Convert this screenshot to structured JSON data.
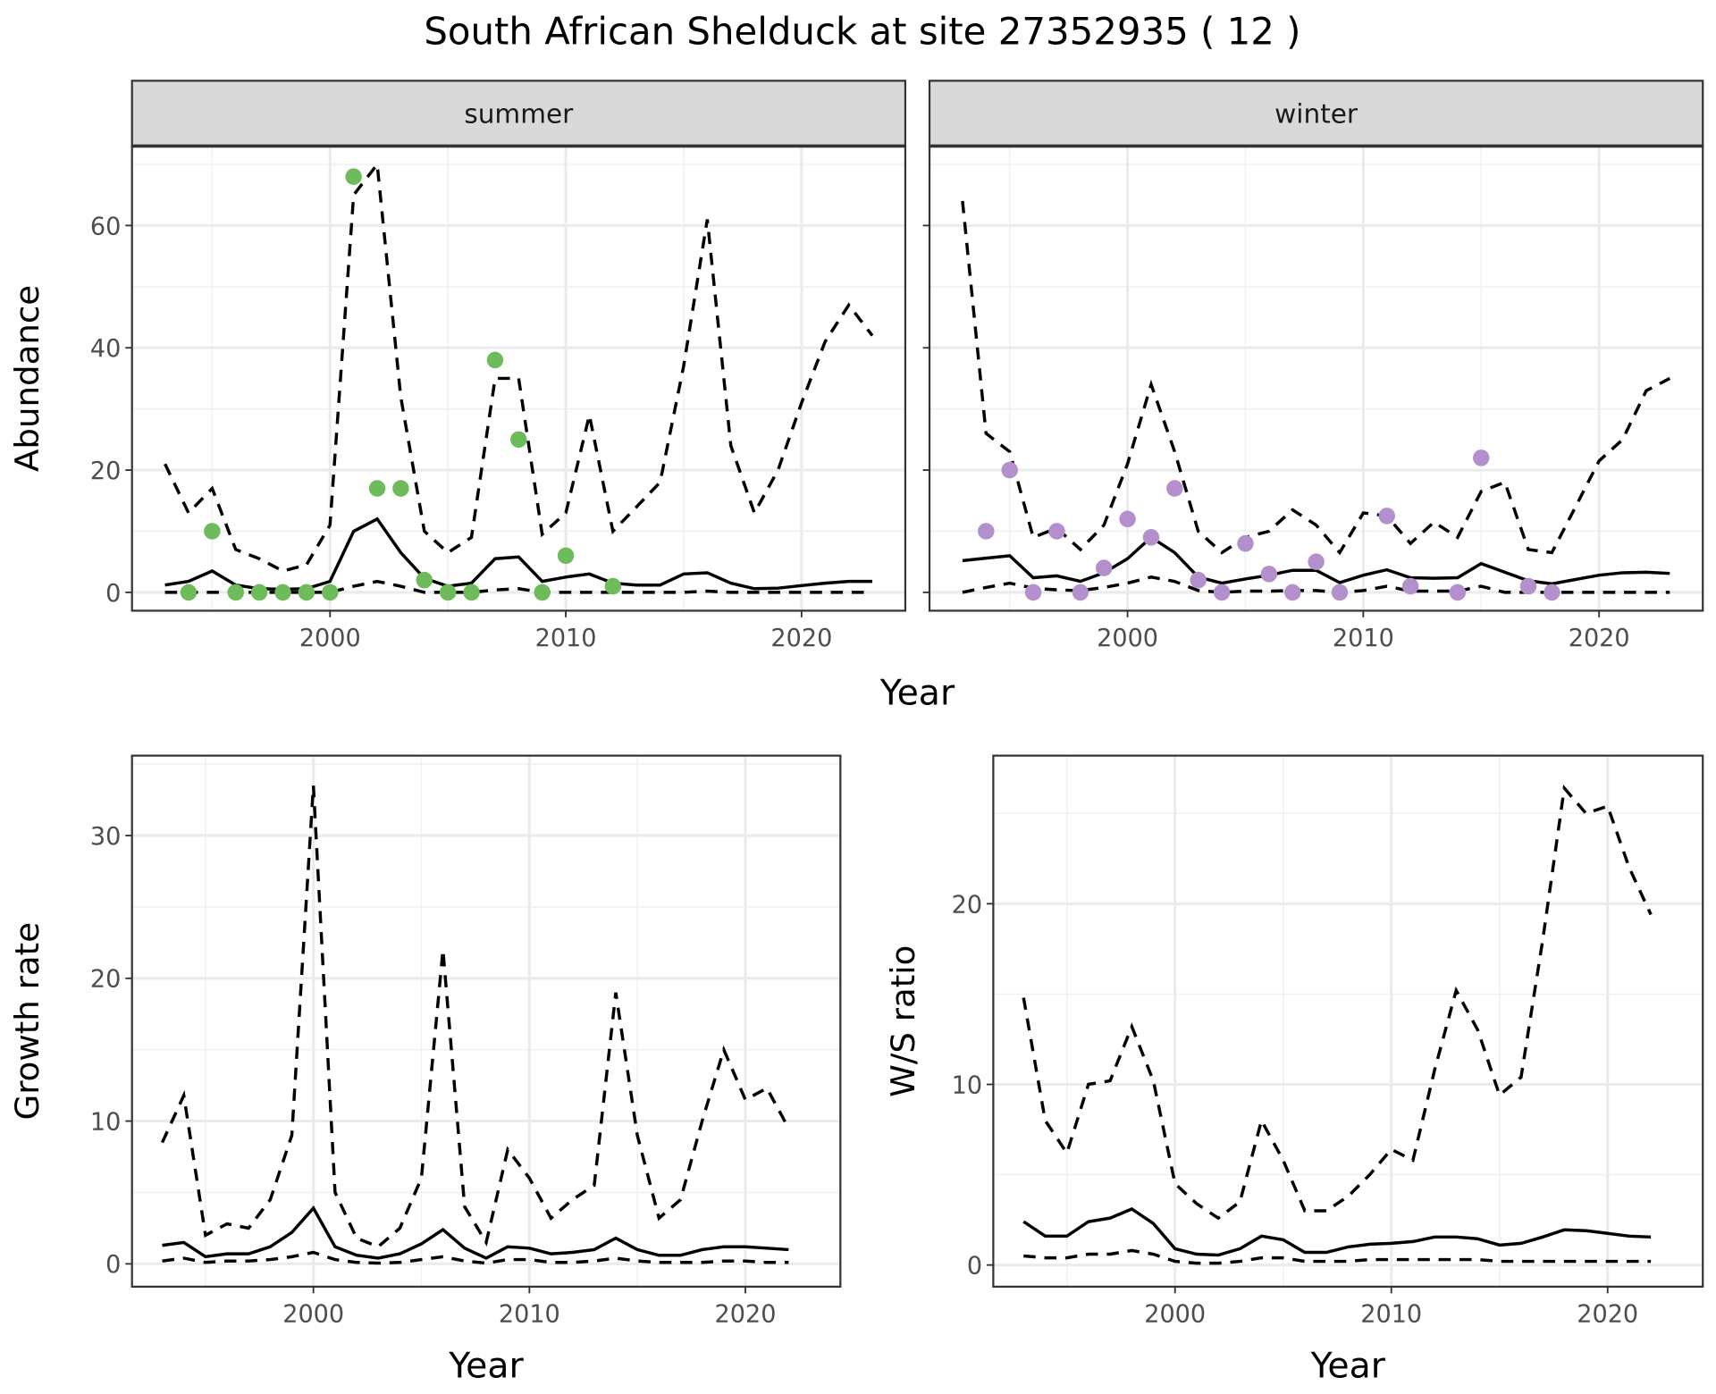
{
  "title": "South African Shelduck at site 27352935 ( 12 )",
  "colors": {
    "summer_points": "#6dbb5a",
    "winter_points": "#b38fcb",
    "lines": "#000000",
    "strip": "#d9d9d9"
  },
  "chart_data": [
    {
      "type": "line",
      "facet": "summer",
      "xlabel": "Year",
      "ylabel": "Abundance",
      "xlim": [
        1991.6,
        2024.4
      ],
      "ylim": [
        -3,
        73
      ],
      "xticks": [
        2000,
        2010,
        2020
      ],
      "yticks": [
        0,
        20,
        40,
        60
      ],
      "grid": true,
      "x": [
        1993,
        1994,
        1995,
        1996,
        1997,
        1998,
        1999,
        2000,
        2001,
        2002,
        2003,
        2004,
        2005,
        2006,
        2007,
        2008,
        2009,
        2010,
        2011,
        2012,
        2013,
        2014,
        2015,
        2016,
        2017,
        2018,
        2019,
        2020,
        2021,
        2022,
        2023
      ],
      "mean": [
        1.2,
        1.8,
        3.5,
        1.2,
        0.6,
        0.5,
        0.6,
        1.8,
        10,
        12,
        6.5,
        2.3,
        1.0,
        1.5,
        5.5,
        5.8,
        1.8,
        2.5,
        3,
        1.5,
        1.2,
        1.2,
        3,
        3.2,
        1.5,
        0.6,
        0.7,
        1.1,
        1.5,
        1.8,
        1.8
      ],
      "upper": [
        21,
        13,
        17,
        7,
        5.5,
        3.5,
        4.5,
        11,
        65,
        70,
        32,
        10,
        6.5,
        9,
        35,
        35,
        9.5,
        13,
        29,
        10,
        14,
        18,
        37,
        61,
        24,
        13,
        20,
        31,
        41,
        47,
        42
      ],
      "lower": [
        0,
        0,
        0,
        0,
        0,
        0,
        0,
        0,
        1,
        1.8,
        1,
        0,
        0,
        0,
        0.4,
        0.6,
        0,
        0,
        0,
        0,
        0,
        0,
        0,
        0.2,
        0,
        0,
        0,
        0,
        0,
        0,
        0
      ],
      "points": {
        "x": [
          1994,
          1995,
          1996,
          1997,
          1998,
          1999,
          2000,
          2001,
          2002,
          2003,
          2004,
          2005,
          2006,
          2007,
          2008,
          2009,
          2010,
          2012
        ],
        "y": [
          0,
          10,
          0,
          0,
          0,
          0,
          0,
          68,
          17,
          17,
          2,
          0,
          0,
          38,
          25,
          0,
          6,
          1
        ]
      }
    },
    {
      "type": "line",
      "facet": "winter",
      "xlabel": "Year",
      "ylabel": "Abundance",
      "xlim": [
        1991.6,
        2024.4
      ],
      "ylim": [
        -3,
        73
      ],
      "xticks": [
        2000,
        2010,
        2020
      ],
      "yticks": [
        0,
        20,
        40,
        60
      ],
      "grid": true,
      "x": [
        1993,
        1994,
        1995,
        1996,
        1997,
        1998,
        1999,
        2000,
        2001,
        2002,
        2003,
        2004,
        2005,
        2006,
        2007,
        2008,
        2009,
        2010,
        2011,
        2012,
        2013,
        2014,
        2015,
        2016,
        2017,
        2018,
        2019,
        2020,
        2021,
        2022,
        2023
      ],
      "mean": [
        5.2,
        5.6,
        6,
        2.4,
        2.7,
        1.8,
        3.2,
        5.5,
        9,
        6.5,
        2.5,
        1.5,
        2.2,
        2.8,
        3.6,
        3.6,
        1.6,
        2.8,
        3.7,
        2.4,
        2.3,
        2.4,
        4.7,
        3.3,
        1.9,
        1.4,
        2.1,
        2.8,
        3.2,
        3.3,
        3.1
      ],
      "upper": [
        64,
        26,
        23,
        9,
        10.5,
        7,
        11,
        21,
        34,
        23,
        10,
        6.5,
        9,
        10,
        13.5,
        11,
        6.5,
        13,
        12.5,
        8,
        11.5,
        9,
        16.5,
        18,
        7,
        6.5,
        14,
        21.5,
        25,
        33,
        35
      ],
      "lower": [
        0,
        0.8,
        1.5,
        0.7,
        0.4,
        0.3,
        0.8,
        1.5,
        2.5,
        1.8,
        0.3,
        0,
        0.2,
        0.2,
        0.3,
        0.3,
        0,
        0.3,
        1,
        0.2,
        0.2,
        0.2,
        1,
        0,
        0,
        0,
        0,
        0,
        0,
        0,
        0
      ],
      "points": {
        "x": [
          1994,
          1995,
          1996,
          1997,
          1998,
          1999,
          2000,
          2001,
          2002,
          2003,
          2004,
          2005,
          2006,
          2007,
          2008,
          2009,
          2011,
          2012,
          2014,
          2015,
          2017,
          2018
        ],
        "y": [
          10,
          20,
          0,
          10,
          0,
          4,
          12,
          9,
          17,
          2,
          0,
          8,
          3,
          0,
          5,
          0,
          12.5,
          1,
          0,
          22,
          1,
          0
        ]
      }
    },
    {
      "type": "line",
      "xlabel": "Year",
      "ylabel": "Growth rate",
      "xlim": [
        1991.6,
        2024.4
      ],
      "ylim": [
        -1.6,
        35.6
      ],
      "xticks": [
        2000,
        2010,
        2020
      ],
      "yticks": [
        0,
        10,
        20,
        30
      ],
      "grid": true,
      "x": [
        1993,
        1994,
        1995,
        1996,
        1997,
        1998,
        1999,
        2000,
        2001,
        2002,
        2003,
        2004,
        2005,
        2006,
        2007,
        2008,
        2009,
        2010,
        2011,
        2012,
        2013,
        2014,
        2015,
        2016,
        2017,
        2018,
        2019,
        2020,
        2021,
        2022
      ],
      "mean": [
        1.3,
        1.5,
        0.5,
        0.7,
        0.7,
        1.2,
        2.2,
        3.9,
        1.2,
        0.6,
        0.4,
        0.7,
        1.4,
        2.4,
        1.1,
        0.4,
        1.2,
        1.1,
        0.7,
        0.8,
        1.0,
        1.8,
        1.0,
        0.6,
        0.6,
        1.0,
        1.2,
        1.2,
        1.1,
        1.0
      ],
      "upper": [
        8.5,
        11.8,
        2,
        2.8,
        2.5,
        4.5,
        9,
        33.5,
        5,
        1.8,
        1.2,
        2.5,
        6,
        22,
        4,
        1.5,
        8,
        6,
        3.2,
        4.5,
        5.5,
        19,
        9,
        3.2,
        4.5,
        10,
        15,
        11.5,
        12.3,
        9.5
      ],
      "lower": [
        0.2,
        0.4,
        0.1,
        0.2,
        0.2,
        0.3,
        0.5,
        0.8,
        0.3,
        0.1,
        0.05,
        0.1,
        0.3,
        0.5,
        0.2,
        0.05,
        0.3,
        0.3,
        0.1,
        0.1,
        0.2,
        0.4,
        0.2,
        0.1,
        0.1,
        0.1,
        0.2,
        0.2,
        0.1,
        0.1
      ]
    },
    {
      "type": "line",
      "xlabel": "Year",
      "ylabel": "W/S ratio",
      "xlim": [
        1991.6,
        2024.4
      ],
      "ylim": [
        -1.2,
        28.2
      ],
      "xticks": [
        2000,
        2010,
        2020
      ],
      "yticks": [
        0,
        10,
        20
      ],
      "grid": true,
      "x": [
        1993,
        1994,
        1995,
        1996,
        1997,
        1998,
        1999,
        2000,
        2001,
        2002,
        2003,
        2004,
        2005,
        2006,
        2007,
        2008,
        2009,
        2010,
        2011,
        2012,
        2013,
        2014,
        2015,
        2016,
        2017,
        2018,
        2019,
        2020,
        2021,
        2022
      ],
      "mean": [
        2.4,
        1.6,
        1.6,
        2.4,
        2.6,
        3.1,
        2.3,
        0.9,
        0.6,
        0.55,
        0.9,
        1.6,
        1.4,
        0.7,
        0.7,
        1.0,
        1.15,
        1.2,
        1.3,
        1.55,
        1.55,
        1.45,
        1.1,
        1.2,
        1.55,
        1.95,
        1.9,
        1.75,
        1.6,
        1.55
      ],
      "upper": [
        14.8,
        8,
        6.2,
        10,
        10.2,
        13.2,
        10.2,
        4.5,
        3.4,
        2.6,
        3.5,
        8,
        5.8,
        3,
        3,
        3.8,
        5,
        6.4,
        5.8,
        10.8,
        15.2,
        13,
        9.4,
        10.4,
        18,
        26.4,
        25,
        25.4,
        22,
        19.4
      ],
      "lower": [
        0.5,
        0.4,
        0.4,
        0.6,
        0.6,
        0.8,
        0.6,
        0.2,
        0.1,
        0.1,
        0.2,
        0.4,
        0.4,
        0.2,
        0.2,
        0.2,
        0.3,
        0.3,
        0.3,
        0.3,
        0.3,
        0.3,
        0.2,
        0.2,
        0.2,
        0.2,
        0.2,
        0.2,
        0.2,
        0.2
      ]
    }
  ]
}
